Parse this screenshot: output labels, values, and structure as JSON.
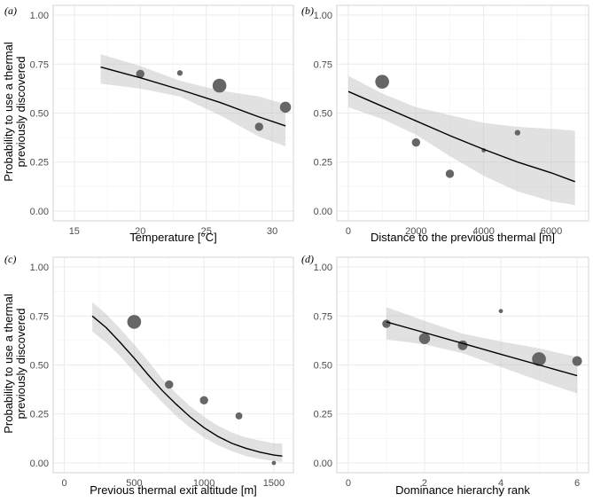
{
  "ylabel_line1": "Probability to use a thermal",
  "ylabel_line2": "previously discovered",
  "chart_data": [
    {
      "type": "scatter",
      "panel_label": "(a)",
      "xlabel": "Temperature [°C]",
      "ylabel": "Probability to use a thermal previously discovered",
      "xlim": [
        13.4,
        31.6
      ],
      "ylim": [
        -0.05,
        1.05
      ],
      "x_ticks": [
        15,
        20,
        25,
        30
      ],
      "y_ticks": [
        0.0,
        0.25,
        0.5,
        0.75,
        1.0
      ],
      "y_tick_labels": [
        "0.00",
        "0.25",
        "0.50",
        "0.75",
        "1.00"
      ],
      "points": [
        {
          "x": 20,
          "y": 0.7,
          "size": 2
        },
        {
          "x": 23,
          "y": 0.705,
          "size": 1
        },
        {
          "x": 26,
          "y": 0.64,
          "size": 4
        },
        {
          "x": 29,
          "y": 0.43,
          "size": 2
        },
        {
          "x": 31,
          "y": 0.53,
          "size": 3
        }
      ],
      "fit": {
        "x": [
          17,
          20,
          23,
          26,
          29,
          31
        ],
        "y": [
          0.735,
          0.68,
          0.62,
          0.555,
          0.48,
          0.435
        ]
      },
      "ci_lower": [
        0.65,
        0.625,
        0.585,
        0.49,
        0.38,
        0.33
      ],
      "ci_upper": [
        0.8,
        0.74,
        0.665,
        0.615,
        0.585,
        0.545
      ]
    },
    {
      "type": "scatter",
      "panel_label": "(b)",
      "xlabel": "Distance to the previous thermal [m]",
      "ylabel": "",
      "xlim": [
        -340,
        7100
      ],
      "ylim": [
        -0.05,
        1.05
      ],
      "x_ticks": [
        0,
        2000,
        4000,
        6000
      ],
      "y_ticks": [
        0.0,
        0.25,
        0.5,
        0.75,
        1.0
      ],
      "y_tick_labels": [
        "0.00",
        "0.25",
        "0.50",
        "0.75",
        "1.00"
      ],
      "points": [
        {
          "x": 1000,
          "y": 0.66,
          "size": 4
        },
        {
          "x": 2000,
          "y": 0.35,
          "size": 2
        },
        {
          "x": 3000,
          "y": 0.19,
          "size": 2
        },
        {
          "x": 4000,
          "y": 0.31,
          "size": 0.5
        },
        {
          "x": 5000,
          "y": 0.4,
          "size": 1
        }
      ],
      "fit": {
        "x": [
          0,
          1000,
          2000,
          3000,
          4000,
          5000,
          6000,
          6700
        ],
        "y": [
          0.61,
          0.535,
          0.46,
          0.385,
          0.315,
          0.25,
          0.195,
          0.15
        ]
      },
      "ci_lower": [
        0.53,
        0.47,
        0.39,
        0.28,
        0.18,
        0.1,
        0.05,
        0.03
      ],
      "ci_upper": [
        0.69,
        0.6,
        0.53,
        0.49,
        0.45,
        0.43,
        0.42,
        0.41
      ]
    },
    {
      "type": "scatter",
      "panel_label": "(c)",
      "xlabel": "Previous thermal exit altitude [m]",
      "ylabel": "Probability to use a thermal previously discovered",
      "xlim": [
        -80,
        1640
      ],
      "ylim": [
        -0.05,
        1.05
      ],
      "x_ticks": [
        0,
        500,
        1000,
        1500
      ],
      "y_ticks": [
        0.0,
        0.25,
        0.5,
        0.75,
        1.0
      ],
      "y_tick_labels": [
        "0.00",
        "0.25",
        "0.50",
        "0.75",
        "1.00"
      ],
      "points": [
        {
          "x": 500,
          "y": 0.72,
          "size": 4
        },
        {
          "x": 750,
          "y": 0.4,
          "size": 2
        },
        {
          "x": 1000,
          "y": 0.32,
          "size": 2
        },
        {
          "x": 1250,
          "y": 0.24,
          "size": 1.5
        },
        {
          "x": 1500,
          "y": 0.0,
          "size": 0.5
        }
      ],
      "fit": {
        "x": [
          200,
          300,
          400,
          500,
          600,
          700,
          800,
          900,
          1000,
          1100,
          1200,
          1300,
          1400,
          1500,
          1560
        ],
        "y": [
          0.75,
          0.69,
          0.615,
          0.535,
          0.45,
          0.37,
          0.3,
          0.235,
          0.18,
          0.135,
          0.1,
          0.075,
          0.055,
          0.04,
          0.035
        ]
      },
      "ci_lower": [
        0.67,
        0.615,
        0.545,
        0.465,
        0.385,
        0.31,
        0.24,
        0.18,
        0.13,
        0.09,
        0.06,
        0.035,
        0.02,
        0.01,
        0.005
      ],
      "ci_upper": [
        0.82,
        0.76,
        0.685,
        0.605,
        0.52,
        0.43,
        0.355,
        0.29,
        0.235,
        0.19,
        0.155,
        0.13,
        0.115,
        0.1,
        0.1
      ]
    },
    {
      "type": "scatter",
      "panel_label": "(d)",
      "xlabel": "Dominance hierarchy rank",
      "ylabel": "",
      "xlim": [
        -0.3,
        6.3
      ],
      "ylim": [
        -0.05,
        1.05
      ],
      "x_ticks": [
        0,
        2,
        4,
        6
      ],
      "y_ticks": [
        0.0,
        0.25,
        0.5,
        0.75,
        1.0
      ],
      "y_tick_labels": [
        "0.00",
        "0.25",
        "0.50",
        "0.75",
        "1.00"
      ],
      "points": [
        {
          "x": 1,
          "y": 0.71,
          "size": 2
        },
        {
          "x": 2,
          "y": 0.635,
          "size": 3
        },
        {
          "x": 3,
          "y": 0.6,
          "size": 2.5
        },
        {
          "x": 4,
          "y": 0.775,
          "size": 0.5
        },
        {
          "x": 5,
          "y": 0.53,
          "size": 4
        },
        {
          "x": 6,
          "y": 0.52,
          "size": 2.5
        }
      ],
      "fit": {
        "x": [
          1,
          2,
          3,
          4,
          5,
          6
        ],
        "y": [
          0.72,
          0.665,
          0.61,
          0.555,
          0.5,
          0.445
        ]
      },
      "ci_lower": [
        0.63,
        0.605,
        0.56,
        0.49,
        0.42,
        0.355
      ],
      "ci_upper": [
        0.795,
        0.725,
        0.66,
        0.62,
        0.585,
        0.54
      ]
    }
  ]
}
